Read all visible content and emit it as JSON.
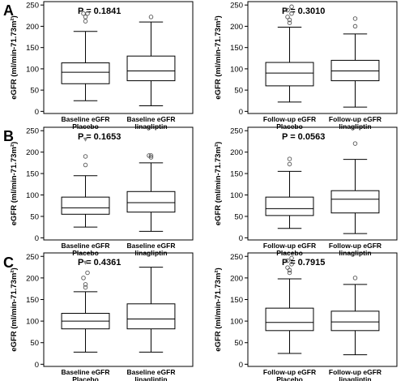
{
  "row_labels": [
    "A",
    "B",
    "C"
  ],
  "chart_data": [
    {
      "type": "box",
      "row": "A",
      "ylabel": "eGFR (ml/min-71.73m²)",
      "yticks": [
        0,
        50,
        100,
        150,
        200,
        250
      ],
      "ylim": [
        -5,
        258
      ],
      "annotation": "P = 0.1841",
      "categories": [
        "Baseline eGFR\nPlacebo",
        "Baseline eGFR\nlinagliptin"
      ],
      "boxes": [
        {
          "whisker_low": 25,
          "q1": 65,
          "median": 92,
          "q3": 114,
          "whisker_high": 188,
          "outliers": [
            {
              "v": 212,
              "m": "o"
            },
            {
              "v": 222,
              "m": "o"
            },
            {
              "v": 230,
              "m": "o"
            },
            {
              "v": 230,
              "m": "o"
            }
          ]
        },
        {
          "whisker_low": 13,
          "q1": 72,
          "median": 95,
          "q3": 130,
          "whisker_high": 210,
          "outliers": [
            {
              "v": 222,
              "m": "o"
            }
          ]
        }
      ]
    },
    {
      "type": "box",
      "row": "A",
      "ylabel": "eGFR (ml/min-71.73m²)",
      "yticks": [
        0,
        50,
        100,
        150,
        200,
        250
      ],
      "ylim": [
        -5,
        258
      ],
      "annotation": "P = 0.3010",
      "categories": [
        "Follow-up eGFR\nPlacebo",
        "Follow-up eGFR\nlinagliptin"
      ],
      "boxes": [
        {
          "whisker_low": 22,
          "q1": 60,
          "median": 90,
          "q3": 115,
          "whisker_high": 198,
          "outliers": [
            {
              "v": 208,
              "m": "o"
            },
            {
              "v": 215,
              "m": "o"
            },
            {
              "v": 222,
              "m": "o"
            },
            {
              "v": 230,
              "m": "o"
            },
            {
              "v": 238,
              "m": "o"
            },
            {
              "v": 246,
              "m": "o"
            }
          ]
        },
        {
          "whisker_low": 10,
          "q1": 72,
          "median": 95,
          "q3": 120,
          "whisker_high": 182,
          "outliers": [
            {
              "v": 200,
              "m": "o"
            },
            {
              "v": 218,
              "m": "o"
            }
          ]
        }
      ]
    },
    {
      "type": "box",
      "row": "B",
      "ylabel": "eGFR (ml/min-71.73m²)",
      "yticks": [
        0,
        50,
        100,
        150,
        200,
        250
      ],
      "ylim": [
        -5,
        258
      ],
      "annotation": "P = 0.1653",
      "categories": [
        "Baseline eGFR\nPlacebo",
        "Baseline eGFR\nlinagliptin"
      ],
      "boxes": [
        {
          "whisker_low": 25,
          "q1": 55,
          "median": 70,
          "q3": 95,
          "whisker_high": 145,
          "outliers": [
            {
              "v": 170,
              "m": "o"
            },
            {
              "v": 190,
              "m": "o"
            },
            {
              "v": 230,
              "m": "v"
            }
          ]
        },
        {
          "whisker_low": 15,
          "q1": 60,
          "median": 82,
          "q3": 108,
          "whisker_high": 175,
          "outliers": [
            {
              "v": 188,
              "m": "o"
            },
            {
              "v": 192,
              "m": "o"
            },
            {
              "v": 192,
              "m": "o"
            }
          ]
        }
      ]
    },
    {
      "type": "box",
      "row": "B",
      "ylabel": "eGFR (ml/min-71.73m²)",
      "yticks": [
        0,
        50,
        100,
        150,
        200,
        250
      ],
      "ylim": [
        -5,
        258
      ],
      "annotation": "P = 0.0563",
      "categories": [
        "Follow-up eGFR\nPlacebo",
        "Follow-up eGFR\nlinagliptin"
      ],
      "boxes": [
        {
          "whisker_low": 22,
          "q1": 52,
          "median": 68,
          "q3": 95,
          "whisker_high": 155,
          "outliers": [
            {
              "v": 172,
              "m": "o"
            },
            {
              "v": 184,
              "m": "o"
            }
          ]
        },
        {
          "whisker_low": 10,
          "q1": 58,
          "median": 90,
          "q3": 110,
          "whisker_high": 183,
          "outliers": [
            {
              "v": 220,
              "m": "o"
            }
          ]
        }
      ]
    },
    {
      "type": "box",
      "row": "C",
      "ylabel": "eGFR (ml/min-71.73m²)",
      "yticks": [
        0,
        50,
        100,
        150,
        200,
        250
      ],
      "ylim": [
        -5,
        258
      ],
      "annotation": "P = 0.4361",
      "categories": [
        "Baseline eGFR\nPlacebo",
        "Baseline eGFR\nlinagliptin"
      ],
      "boxes": [
        {
          "whisker_low": 28,
          "q1": 82,
          "median": 100,
          "q3": 118,
          "whisker_high": 168,
          "outliers": [
            {
              "v": 178,
              "m": "o"
            },
            {
              "v": 185,
              "m": "o"
            },
            {
              "v": 200,
              "m": "o"
            },
            {
              "v": 212,
              "m": "o"
            },
            {
              "v": 236,
              "m": "v"
            }
          ]
        },
        {
          "whisker_low": 28,
          "q1": 82,
          "median": 105,
          "q3": 140,
          "whisker_high": 225,
          "outliers": []
        }
      ]
    },
    {
      "type": "box",
      "row": "C",
      "ylabel": "eGFR (ml/min-71.73m²)",
      "yticks": [
        0,
        50,
        100,
        150,
        200,
        250
      ],
      "ylim": [
        -5,
        258
      ],
      "annotation": "P = 0.7915",
      "categories": [
        "Follow-up eGFR\nPlacebo",
        "Follow-up eGFR\nlinagliptin"
      ],
      "boxes": [
        {
          "whisker_low": 25,
          "q1": 78,
          "median": 97,
          "q3": 130,
          "whisker_high": 198,
          "outliers": [
            {
              "v": 212,
              "m": "o"
            },
            {
              "v": 218,
              "m": "o"
            },
            {
              "v": 224,
              "m": "o"
            },
            {
              "v": 232,
              "m": "o"
            },
            {
              "v": 240,
              "m": "o"
            },
            {
              "v": 246,
              "m": "o"
            }
          ]
        },
        {
          "whisker_low": 22,
          "q1": 78,
          "median": 98,
          "q3": 123,
          "whisker_high": 185,
          "outliers": [
            {
              "v": 200,
              "m": "o"
            }
          ]
        }
      ]
    }
  ]
}
